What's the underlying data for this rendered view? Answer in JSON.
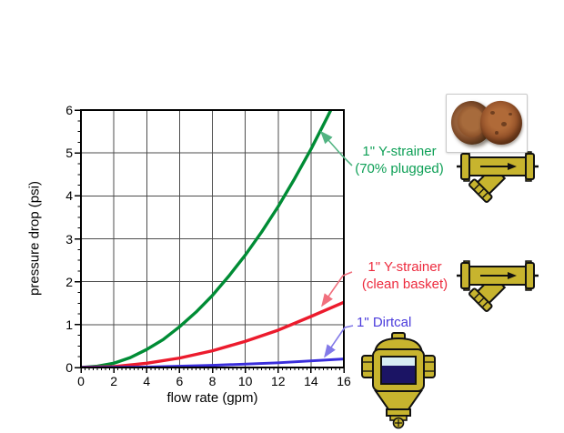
{
  "figure": {
    "background": "#ffffff"
  },
  "chart_data": {
    "type": "line",
    "title": "",
    "xlabel": "flow rate (gpm)",
    "ylabel": "pressure drop (psi)",
    "xlim": [
      0,
      16
    ],
    "ylim": [
      0,
      6
    ],
    "x_ticks": [
      0,
      2,
      4,
      6,
      8,
      10,
      12,
      14,
      16
    ],
    "y_ticks": [
      0,
      1,
      2,
      3,
      4,
      5,
      6
    ],
    "x_minor_step": 0.25,
    "y_minor_step": 0.25,
    "grid": true,
    "grid_color": "#4d4d4d",
    "legend_position": "right-annotations",
    "series": [
      {
        "name": "1\" Y-strainer (70% plugged)",
        "color": "#008C35",
        "x": [
          0,
          1,
          2,
          3,
          4,
          5,
          6,
          7,
          8,
          9,
          10,
          11,
          12,
          13,
          14,
          15,
          15.4
        ],
        "y": [
          0,
          0.03,
          0.1,
          0.23,
          0.42,
          0.65,
          0.95,
          1.29,
          1.68,
          2.13,
          2.62,
          3.16,
          3.75,
          4.4,
          5.09,
          5.84,
          6.15
        ]
      },
      {
        "name": "1\" Y-strainer (clean basket)",
        "color": "#EC1B2D",
        "x": [
          0,
          2,
          4,
          6,
          8,
          10,
          12,
          14,
          16
        ],
        "y": [
          0,
          0.02,
          0.1,
          0.22,
          0.39,
          0.61,
          0.87,
          1.19,
          1.52
        ]
      },
      {
        "name": "1\" Dirtcal",
        "color": "#3A2EDB",
        "x": [
          0,
          4,
          8,
          12,
          16
        ],
        "y": [
          0,
          0.01,
          0.05,
          0.11,
          0.2
        ]
      }
    ]
  },
  "annotations": {
    "plugged": {
      "line1": "1\" Y-strainer",
      "line2": "(70% plugged)",
      "color": "#0FA057",
      "leader_color": "#53B483"
    },
    "clean": {
      "line1": "1\" Y-strainer",
      "line2": "(clean basket)",
      "color": "#ED2B3E",
      "leader_color": "#F1707E"
    },
    "dirtcal": {
      "line1": "1\" Dirtcal",
      "color": "#4A3BDC",
      "leader_color": "#837AE8"
    }
  },
  "icons": {
    "plugged_photo": "photo of 70% plugged strainer basket",
    "y_strainer": "brass Y-strainer schematic",
    "dirtcal": "brass Dirtcal dirt separator schematic",
    "brass_color": "#C7B42E",
    "window_light": "#D8EDF4",
    "window_dark": "#1B1464"
  }
}
